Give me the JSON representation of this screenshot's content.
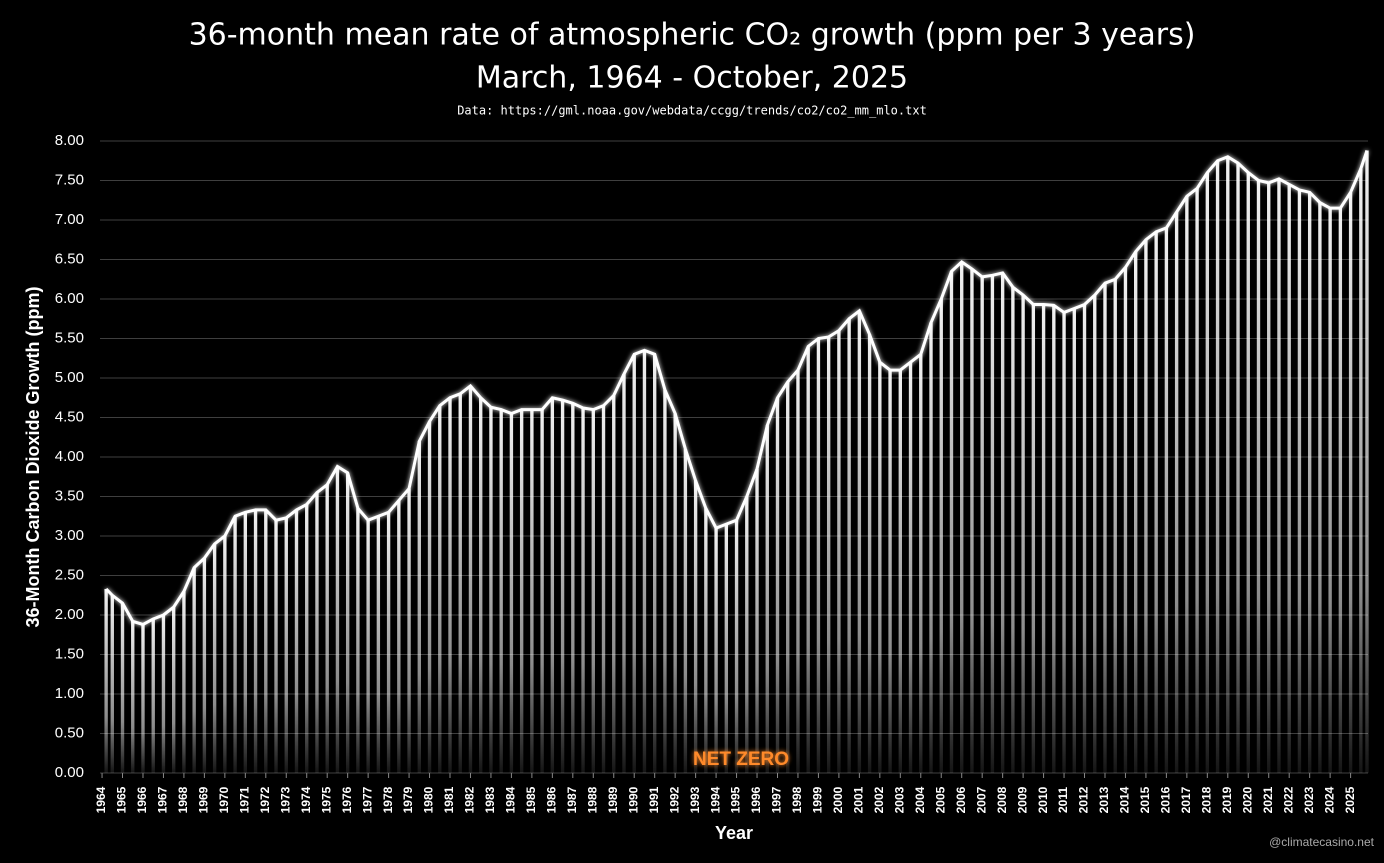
{
  "chart_data": {
    "type": "bar",
    "title": "36-month mean rate of atmospheric CO₂ growth (ppm per 3 years)",
    "subtitle": "March, 1964 - October, 2025",
    "source": "Data: https://gml.noaa.gov/webdata/ccgg/trends/co2/co2_mm_mlo.txt",
    "x_label": "Year",
    "y_label": "36-Month Carbon Dioxide Growth (ppm)",
    "annotation": "NET ZERO",
    "watermark": "@climatecasino.net",
    "color": "#ffffff",
    "zero_line_color": "#ff8a2a",
    "grid": true,
    "x": [
      1964.2,
      1964.5,
      1965.0,
      1965.5,
      1966.0,
      1966.5,
      1967.0,
      1967.5,
      1968.0,
      1968.5,
      1969.0,
      1969.5,
      1970.0,
      1970.5,
      1971.0,
      1971.5,
      1972.0,
      1972.5,
      1973.0,
      1973.5,
      1974.0,
      1974.5,
      1975.0,
      1975.5,
      1976.0,
      1976.5,
      1977.0,
      1977.5,
      1978.0,
      1978.5,
      1979.0,
      1979.5,
      1980.0,
      1980.5,
      1981.0,
      1981.5,
      1982.0,
      1982.5,
      1983.0,
      1983.5,
      1984.0,
      1984.5,
      1985.0,
      1985.5,
      1986.0,
      1986.5,
      1987.0,
      1987.5,
      1988.0,
      1988.5,
      1989.0,
      1989.5,
      1990.0,
      1990.5,
      1991.0,
      1991.5,
      1992.0,
      1992.5,
      1993.0,
      1993.5,
      1994.0,
      1994.5,
      1995.0,
      1995.5,
      1996.0,
      1996.5,
      1997.0,
      1997.5,
      1998.0,
      1998.5,
      1999.0,
      1999.5,
      2000.0,
      2000.5,
      2001.0,
      2001.5,
      2002.0,
      2002.5,
      2003.0,
      2003.5,
      2004.0,
      2004.5,
      2005.0,
      2005.5,
      2006.0,
      2006.5,
      2007.0,
      2007.5,
      2008.0,
      2008.5,
      2009.0,
      2009.5,
      2010.0,
      2010.5,
      2011.0,
      2011.5,
      2012.0,
      2012.5,
      2013.0,
      2013.5,
      2014.0,
      2014.5,
      2015.0,
      2015.5,
      2016.0,
      2016.5,
      2017.0,
      2017.5,
      2018.0,
      2018.5,
      2019.0,
      2019.5,
      2020.0,
      2020.5,
      2021.0,
      2021.5,
      2022.0,
      2022.5,
      2023.0,
      2023.5,
      2024.0,
      2024.5,
      2025.0,
      2025.5,
      2025.8
    ],
    "values": [
      2.33,
      2.25,
      2.15,
      1.92,
      1.88,
      1.95,
      2.0,
      2.1,
      2.3,
      2.6,
      2.72,
      2.9,
      3.0,
      3.25,
      3.3,
      3.33,
      3.33,
      3.2,
      3.23,
      3.33,
      3.4,
      3.55,
      3.65,
      3.88,
      3.8,
      3.35,
      3.2,
      3.25,
      3.3,
      3.45,
      3.6,
      4.2,
      4.45,
      4.65,
      4.75,
      4.8,
      4.9,
      4.75,
      4.63,
      4.6,
      4.55,
      4.6,
      4.6,
      4.6,
      4.75,
      4.72,
      4.68,
      4.62,
      4.6,
      4.65,
      4.78,
      5.05,
      5.3,
      5.35,
      5.3,
      4.85,
      4.55,
      4.1,
      3.7,
      3.35,
      3.1,
      3.15,
      3.2,
      3.5,
      3.85,
      4.4,
      4.75,
      4.95,
      5.1,
      5.4,
      5.5,
      5.52,
      5.6,
      5.75,
      5.85,
      5.55,
      5.2,
      5.1,
      5.1,
      5.2,
      5.3,
      5.7,
      6.0,
      6.35,
      6.47,
      6.38,
      6.28,
      6.3,
      6.33,
      6.15,
      6.05,
      5.93,
      5.93,
      5.92,
      5.83,
      5.88,
      5.93,
      6.05,
      6.2,
      6.25,
      6.4,
      6.6,
      6.75,
      6.85,
      6.9,
      7.1,
      7.3,
      7.4,
      7.6,
      7.75,
      7.8,
      7.72,
      7.6,
      7.5,
      7.47,
      7.52,
      7.45,
      7.38,
      7.35,
      7.22,
      7.15,
      7.15,
      7.35,
      7.65,
      7.88
    ],
    "xlim": [
      1963.9,
      2025.85
    ],
    "xticks": [
      1964,
      1965,
      1966,
      1967,
      1968,
      1969,
      1970,
      1971,
      1972,
      1973,
      1974,
      1975,
      1976,
      1977,
      1978,
      1979,
      1980,
      1981,
      1982,
      1983,
      1984,
      1985,
      1986,
      1987,
      1988,
      1989,
      1990,
      1991,
      1992,
      1993,
      1994,
      1995,
      1996,
      1997,
      1998,
      1999,
      2000,
      2001,
      2002,
      2003,
      2004,
      2005,
      2006,
      2007,
      2008,
      2009,
      2010,
      2011,
      2012,
      2013,
      2014,
      2015,
      2016,
      2017,
      2018,
      2019,
      2020,
      2021,
      2022,
      2023,
      2024,
      2025
    ],
    "ylim": [
      0,
      8
    ],
    "yticks": [
      {
        "value": 0,
        "label": "0.00"
      },
      {
        "value": 0.5,
        "label": "0.50"
      },
      {
        "value": 1,
        "label": "1.00"
      },
      {
        "value": 1.5,
        "label": "1.50"
      },
      {
        "value": 2,
        "label": "2.00"
      },
      {
        "value": 2.5,
        "label": "2.50"
      },
      {
        "value": 3,
        "label": "3.00"
      },
      {
        "value": 3.5,
        "label": "3.50"
      },
      {
        "value": 4,
        "label": "4.00"
      },
      {
        "value": 4.5,
        "label": "4.50"
      },
      {
        "value": 5,
        "label": "5.00"
      },
      {
        "value": 5.5,
        "label": "5.50"
      },
      {
        "value": 6,
        "label": "6.00"
      },
      {
        "value": 6.5,
        "label": "6.50"
      },
      {
        "value": 7,
        "label": "7.00"
      },
      {
        "value": 7.5,
        "label": "7.50"
      },
      {
        "value": 8,
        "label": "8.00"
      }
    ]
  }
}
